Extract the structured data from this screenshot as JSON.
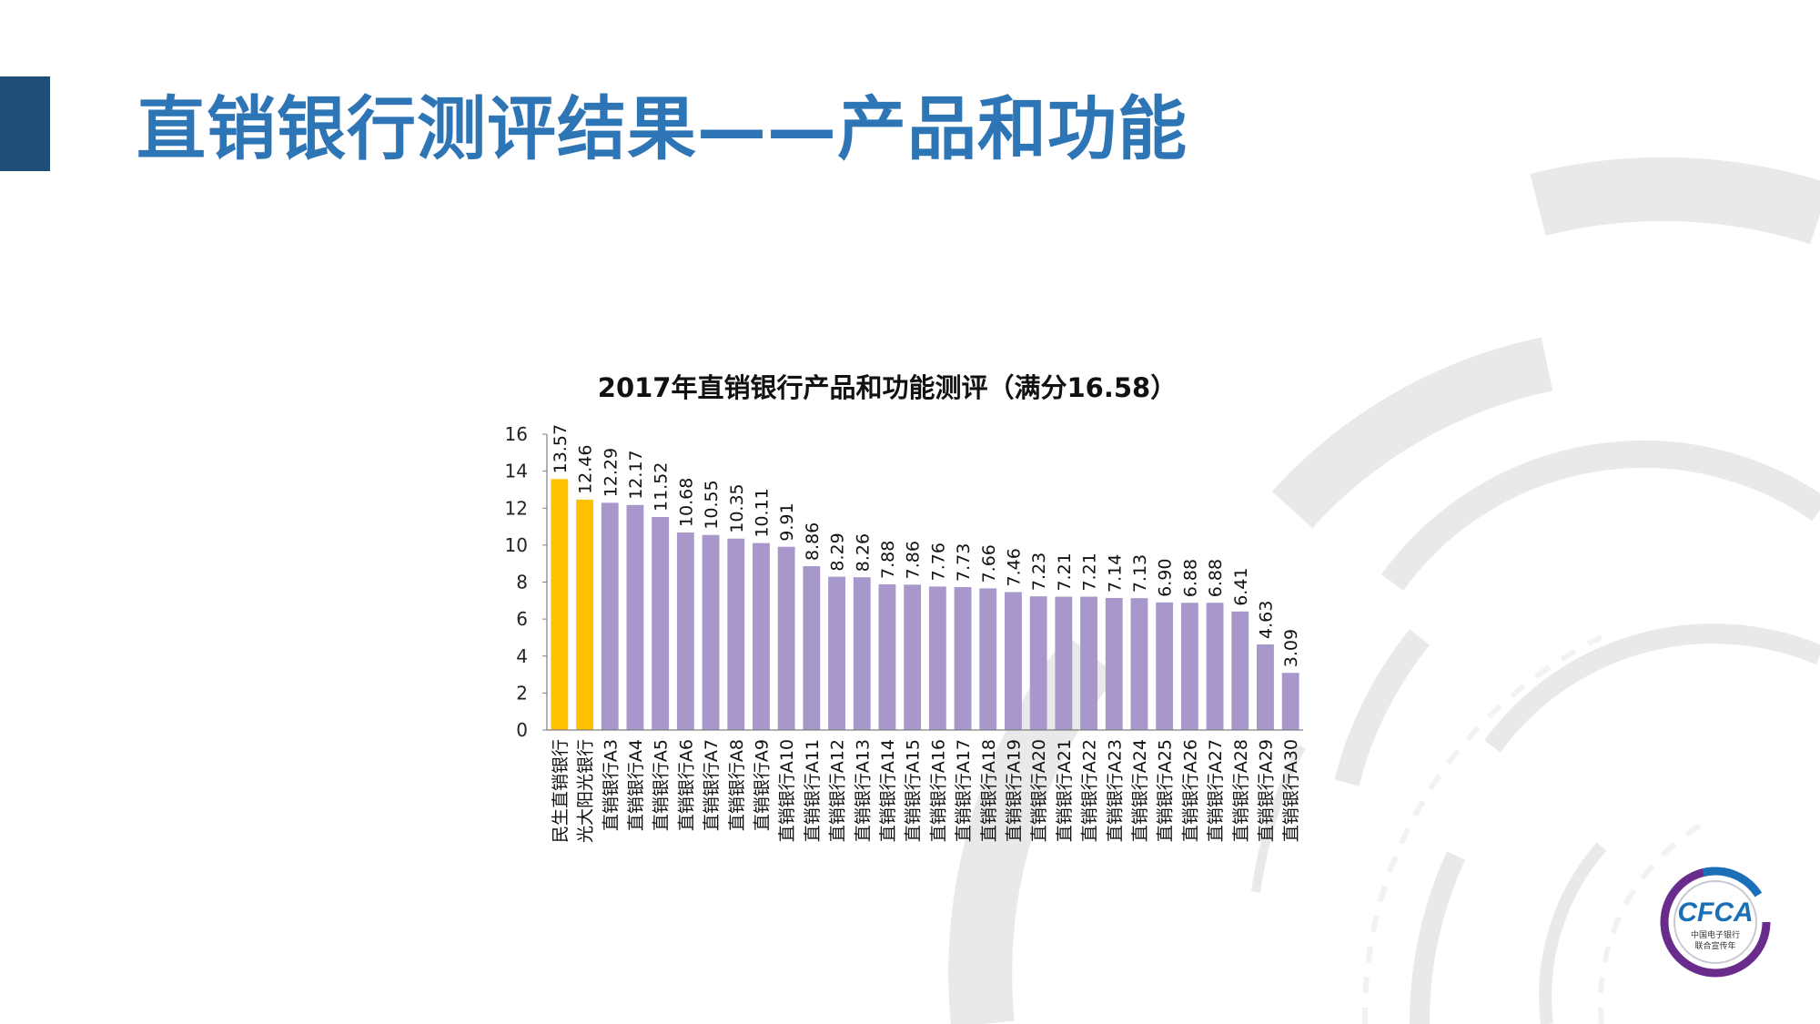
{
  "title": "直销银行测评结果——产品和功能",
  "logo": {
    "text": "CFCA",
    "sub_line1": "中国电子银行",
    "sub_line2": "联合宣传年"
  },
  "colors": {
    "title": "#2e75b6",
    "accent_bar": "#1f4e79",
    "highlight_bar": "#ffc000",
    "bar": "#a797cb",
    "axis": "#808080"
  },
  "chart_data": {
    "type": "bar",
    "title": "2017年直销银行产品和功能测评（满分16.58）",
    "xlabel": "",
    "ylabel": "",
    "ylim": [
      0,
      16
    ],
    "yticks": [
      0,
      2,
      4,
      6,
      8,
      10,
      12,
      14,
      16
    ],
    "grid": false,
    "legend": "none",
    "categories": [
      "民生直销银行",
      "光大阳光银行",
      "直销银行A3",
      "直销银行A4",
      "直销银行A5",
      "直销银行A6",
      "直销银行A7",
      "直销银行A8",
      "直销银行A9",
      "直销银行A10",
      "直销银行A11",
      "直销银行A12",
      "直销银行A13",
      "直销银行A14",
      "直销银行A15",
      "直销银行A16",
      "直销银行A17",
      "直销银行A18",
      "直销银行A19",
      "直销银行A20",
      "直销银行A21",
      "直销银行A22",
      "直销银行A23",
      "直销银行A24",
      "直销银行A25",
      "直销银行A26",
      "直销银行A27",
      "直销银行A28",
      "直销银行A29",
      "直销银行A30"
    ],
    "values": [
      13.57,
      12.46,
      12.29,
      12.17,
      11.52,
      10.68,
      10.55,
      10.35,
      10.11,
      9.91,
      8.86,
      8.29,
      8.26,
      7.88,
      7.86,
      7.76,
      7.73,
      7.66,
      7.46,
      7.23,
      7.21,
      7.21,
      7.14,
      7.13,
      6.9,
      6.88,
      6.88,
      6.41,
      4.63,
      3.09
    ],
    "data_labels": [
      "13.57",
      "12.46",
      "12.29",
      "12.17",
      "11.52",
      "10.68",
      "10.55",
      "10.35",
      "10.11",
      "9.91",
      "8.86",
      "8.29",
      "8.26",
      "7.88",
      "7.86",
      "7.76",
      "7.73",
      "7.66",
      "7.46",
      "7.23",
      "7.21",
      "7.21",
      "7.14",
      "7.13",
      "6.90",
      "6.88",
      "6.88",
      "6.41",
      "4.63",
      "3.09"
    ],
    "highlighted": [
      0,
      1
    ]
  }
}
